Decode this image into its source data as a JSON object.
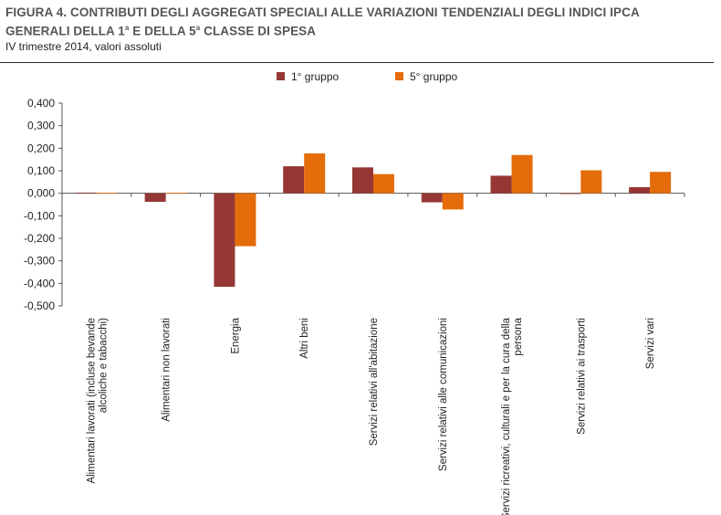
{
  "header": {
    "title_line1": "FIGURA 4. CONTRIBUTI DEGLI AGGREGATI SPECIALI ALLE VARIAZIONI TENDENZIALI DEGLI INDICI IPCA",
    "title_line2_a": "GENERALI DELLA 1",
    "title_sup1": "a",
    "title_line2_b": " E DELLA 5",
    "title_sup2": "a",
    "title_line2_c": " CLASSE DI SPESA",
    "subtitle": "IV trimestre 2014, valori assoluti"
  },
  "chart_data": {
    "type": "bar",
    "title": "",
    "xlabel": "",
    "ylabel": "",
    "ylim": [
      -0.5,
      0.4
    ],
    "ytick_step": 0.1,
    "yticks": [
      "0,400",
      "0,300",
      "0,200",
      "0,100",
      "0,000",
      "-0,100",
      "-0,200",
      "-0,300",
      "-0,400",
      "-0,500"
    ],
    "grid": false,
    "legend_position": "top",
    "categories": [
      [
        "Alimentari lavorati (incluse bevande",
        "alcoliche e tabacchi)"
      ],
      [
        "Alimentari non lavorati"
      ],
      [
        "Energia"
      ],
      [
        "Altri beni"
      ],
      [
        "Servizi relativi all'abitazione"
      ],
      [
        "Servizi relativi alle comunicazioni"
      ],
      [
        "Servizi ricreativi, culturali e per la cura della",
        "persona"
      ],
      [
        "Servizi relativi ai trasporti"
      ],
      [
        "Servizi vari"
      ]
    ],
    "series": [
      {
        "name": "1° gruppo",
        "color": "#953735",
        "values": [
          0.003,
          -0.038,
          -0.415,
          0.12,
          0.115,
          -0.04,
          0.078,
          -0.003,
          0.027
        ]
      },
      {
        "name": "5° gruppo",
        "color": "#e46c0a",
        "values": [
          0.002,
          0.002,
          -0.235,
          0.177,
          0.085,
          -0.072,
          0.17,
          0.102,
          0.095
        ]
      }
    ]
  }
}
